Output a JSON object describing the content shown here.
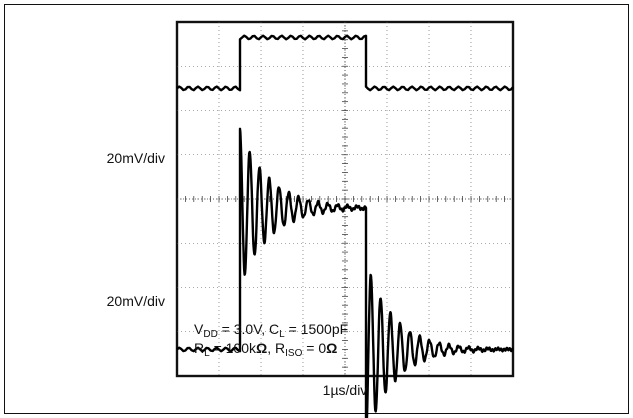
{
  "chart_data": {
    "type": "line",
    "title": "",
    "xlabel": "1µs/div",
    "ylabel": "",
    "grid": true,
    "x_divisions": 8,
    "y_divisions": 8,
    "channels": [
      {
        "scale_label": "20mV/div",
        "t_div": [
          0,
          1.5,
          1.5,
          4.5,
          4.5,
          8
        ],
        "v_div": [
          2.5,
          2.5,
          3.65,
          3.65,
          2.5,
          2.5
        ]
      },
      {
        "scale_label": "20mV/div",
        "t_div": [
          0,
          1.5,
          1.5,
          4.5,
          4.5,
          8
        ],
        "v_div": [
          -3.4,
          -3.4,
          -0.2,
          -0.2,
          -3.4,
          -3.4
        ],
        "ringing_after_edges": true
      }
    ],
    "annotations": [
      {
        "main": "V",
        "sub": "DD",
        "tail": " = 3.0V, C"
      },
      {
        "main": "",
        "sub": "L",
        "tail": " = 1500pF"
      },
      {
        "main": "R",
        "sub": "L",
        "tail": " = 100k"
      },
      {
        "main": "Ω",
        "sub": "",
        "tail": ", R"
      },
      {
        "main": "",
        "sub": "ISO",
        "tail": " = 0"
      },
      {
        "main": "Ω",
        "sub": "",
        "tail": ""
      }
    ]
  }
}
